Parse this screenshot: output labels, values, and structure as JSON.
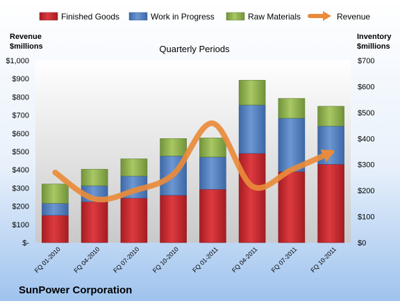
{
  "chart_data": {
    "type": "bar",
    "stacked": true,
    "subtitle": "Quarterly Periods",
    "company": "SunPower Corporation",
    "categories": [
      "FQ 01-2010",
      "FQ 04-2010",
      "FQ 07-2010",
      "FQ 10-2010",
      "FQ 01-2011",
      "FQ 04-2011",
      "FQ 07-2011",
      "FQ 10-2011"
    ],
    "left_axis": {
      "label_line1": "Revenue",
      "label_line2": "$millions",
      "ylim": [
        0,
        1000
      ],
      "ticks": [
        "$-",
        "$100",
        "$200",
        "$300",
        "$400",
        "$500",
        "$600",
        "$700",
        "$800",
        "$900",
        "$1,000"
      ]
    },
    "right_axis": {
      "label_line1": "Inventory",
      "label_line2": "$millions",
      "ylim": [
        0,
        700
      ],
      "ticks": [
        "$0",
        "$100",
        "$200",
        "$300",
        "$400",
        "$500",
        "$600",
        "$700"
      ]
    },
    "series": [
      {
        "name": "Finished Goods",
        "axis": "right",
        "color": "#c0282d",
        "values": [
          105,
          157,
          171,
          182,
          205,
          343,
          273,
          301
        ]
      },
      {
        "name": "Work in Progress",
        "axis": "right",
        "color": "#4f7fc0",
        "values": [
          46,
          62,
          85,
          151,
          124,
          186,
          205,
          147
        ]
      },
      {
        "name": "Raw Materials",
        "axis": "right",
        "color": "#8fb04a",
        "values": [
          74,
          63,
          66,
          67,
          73,
          95,
          76,
          76
        ]
      },
      {
        "name": "Revenue",
        "axis": "left",
        "type": "line",
        "color": "#e98b3a",
        "values": [
          385,
          240,
          285,
          375,
          655,
          310,
          400,
          495
        ]
      }
    ],
    "legend_position": "top",
    "grid": false
  }
}
